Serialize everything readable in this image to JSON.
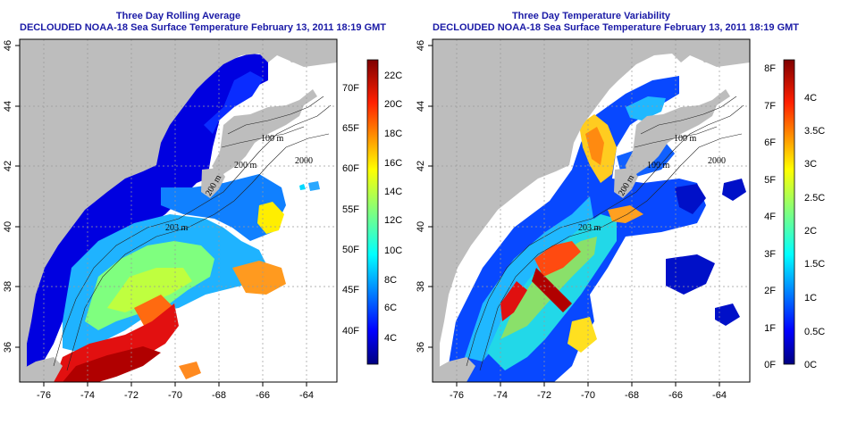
{
  "panels": [
    {
      "title_line1": "Three Day Rolling Average",
      "title_line2": "DECLOUDED NOAA-18 Sea Surface Temperature February 13, 2011 18:19 GMT",
      "colorbar": {
        "left_labels": [
          "40F",
          "45F",
          "50F",
          "55F",
          "60F",
          "65F",
          "70F"
        ],
        "right_labels": [
          "4C",
          "6C",
          "8C",
          "10C",
          "12C",
          "14C",
          "16C",
          "18C",
          "20C",
          "22C"
        ]
      }
    },
    {
      "title_line1": "Three Day Temperature Variability",
      "title_line2": "DECLOUDED NOAA-18 Sea Surface Temperature February 13, 2011 18:19 GMT",
      "colorbar": {
        "left_labels": [
          "0F",
          "1F",
          "2F",
          "3F",
          "4F",
          "5F",
          "6F",
          "7F",
          "8F"
        ],
        "right_labels": [
          "0C",
          "0.5C",
          "1C",
          "1.5C",
          "2C",
          "2.5C",
          "3C",
          "3.5C",
          "4C"
        ]
      }
    }
  ],
  "map_axes": {
    "x_ticks": [
      "-76",
      "-74",
      "-72",
      "-70",
      "-68",
      "-66",
      "-64"
    ],
    "y_ticks": [
      "36",
      "38",
      "40",
      "42",
      "44",
      "46"
    ],
    "x_range": [
      -77.5,
      -63
    ],
    "y_range": [
      35,
      46
    ]
  },
  "contour_labels": [
    "100 m",
    "200 m",
    "2000",
    "100 m",
    "200 m",
    "203 m",
    "100 m",
    "200 m"
  ],
  "colors": {
    "title": "#1a1aa6",
    "land": "#bdbdbd",
    "colormap": [
      "#00007f",
      "#0000ff",
      "#007fff",
      "#00ffff",
      "#7fff7f",
      "#ffff00",
      "#ff7f00",
      "#ff0000",
      "#7f0000"
    ]
  }
}
